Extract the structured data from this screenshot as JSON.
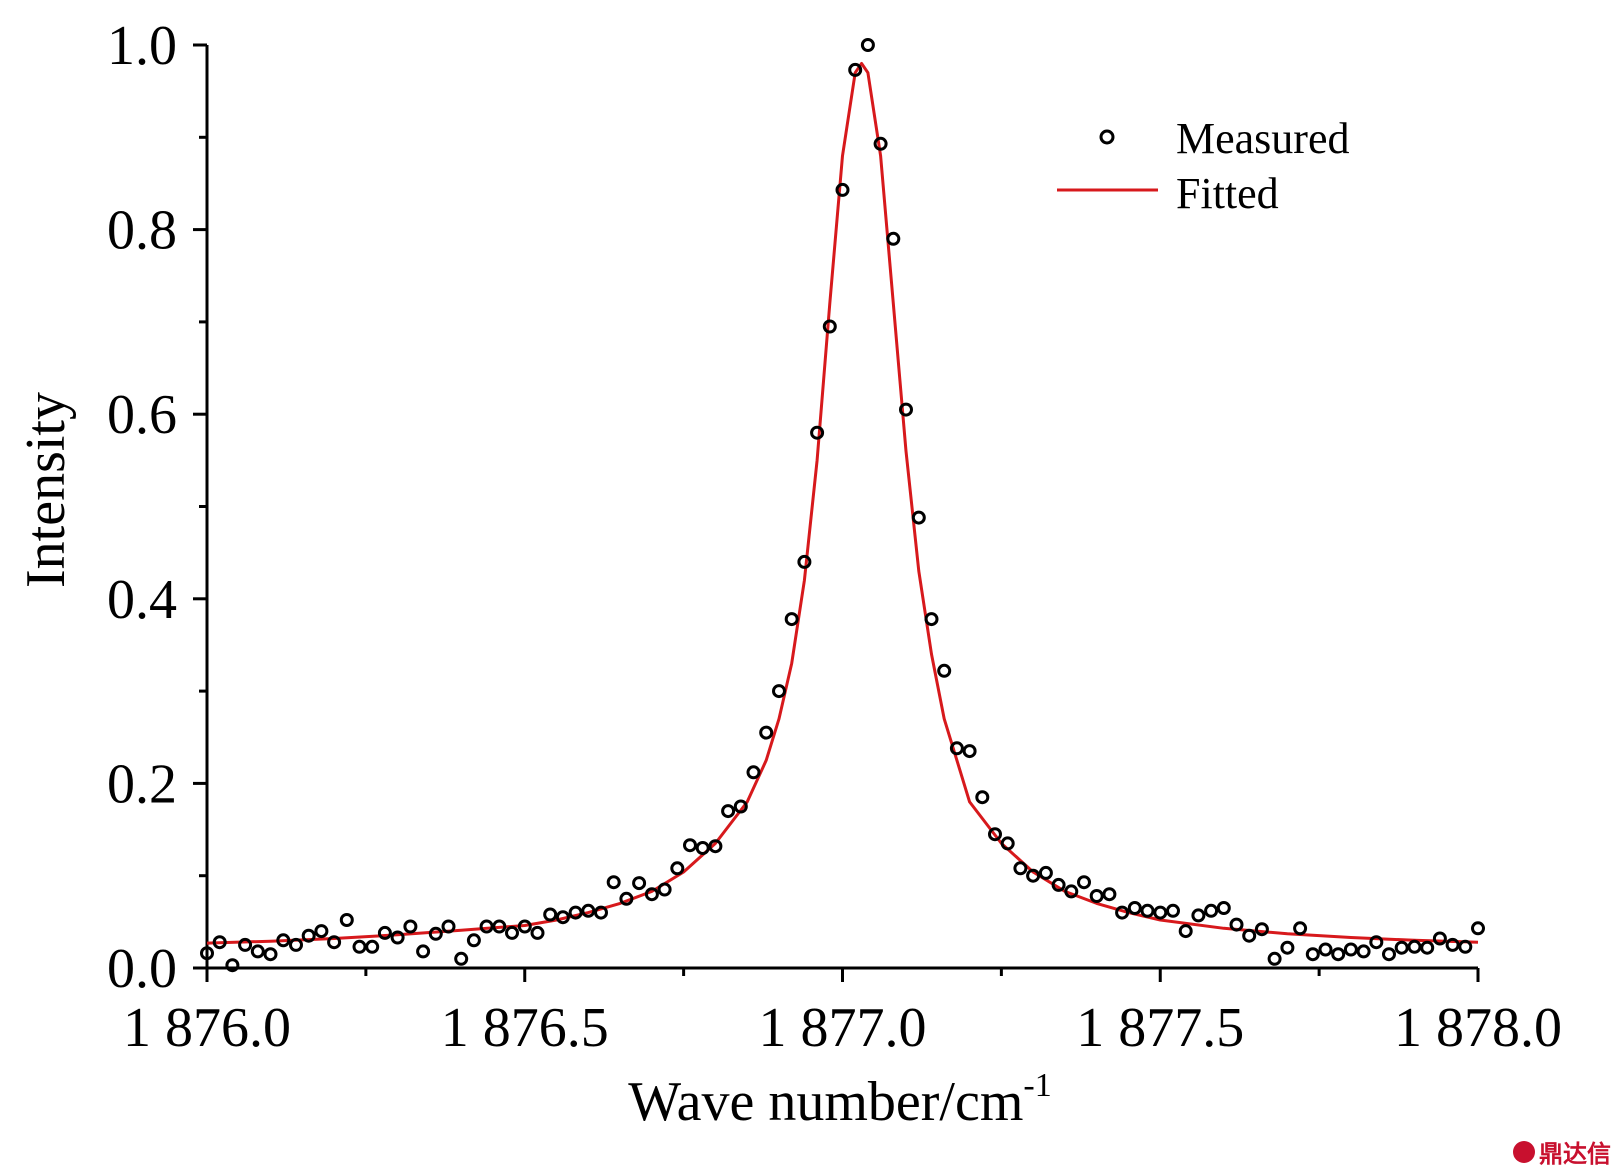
{
  "chart_data": {
    "type": "scatter",
    "xlabel": "Wave number/cm",
    "xlabel_superscript": "-1",
    "ylabel": "Intensity",
    "xlim": [
      1876.0,
      1878.0
    ],
    "ylim": [
      0.0,
      1.0
    ],
    "x_ticks": [
      1876.0,
      1876.5,
      1877.0,
      1877.5,
      1878.0
    ],
    "x_tick_labels": [
      "1 876.0",
      "1 876.5",
      "1 877.0",
      "1 877.5",
      "1 878.0"
    ],
    "y_ticks": [
      0.0,
      0.2,
      0.4,
      0.6,
      0.8,
      1.0
    ],
    "y_tick_labels": [
      "0.0",
      "0.2",
      "0.4",
      "0.6",
      "0.8",
      "1.0"
    ],
    "grid": false,
    "legend_position": "top-right",
    "series": [
      {
        "name": "Measured",
        "kind": "scatter",
        "marker": "open-circle",
        "color": "#000000",
        "points": [
          [
            1876.0,
            0.016
          ],
          [
            1876.02,
            0.028
          ],
          [
            1876.04,
            0.003
          ],
          [
            1876.06,
            0.025
          ],
          [
            1876.08,
            0.018
          ],
          [
            1876.1,
            0.015
          ],
          [
            1876.12,
            0.03
          ],
          [
            1876.14,
            0.025
          ],
          [
            1876.16,
            0.035
          ],
          [
            1876.18,
            0.04
          ],
          [
            1876.2,
            0.028
          ],
          [
            1876.22,
            0.052
          ],
          [
            1876.24,
            0.023
          ],
          [
            1876.26,
            0.023
          ],
          [
            1876.28,
            0.038
          ],
          [
            1876.3,
            0.033
          ],
          [
            1876.32,
            0.045
          ],
          [
            1876.34,
            0.018
          ],
          [
            1876.36,
            0.037
          ],
          [
            1876.38,
            0.045
          ],
          [
            1876.4,
            0.01
          ],
          [
            1876.42,
            0.03
          ],
          [
            1876.44,
            0.045
          ],
          [
            1876.46,
            0.045
          ],
          [
            1876.48,
            0.038
          ],
          [
            1876.5,
            0.045
          ],
          [
            1876.52,
            0.038
          ],
          [
            1876.54,
            0.058
          ],
          [
            1876.56,
            0.055
          ],
          [
            1876.58,
            0.06
          ],
          [
            1876.6,
            0.062
          ],
          [
            1876.62,
            0.06
          ],
          [
            1876.64,
            0.093
          ],
          [
            1876.66,
            0.075
          ],
          [
            1876.68,
            0.092
          ],
          [
            1876.7,
            0.08
          ],
          [
            1876.72,
            0.085
          ],
          [
            1876.74,
            0.108
          ],
          [
            1876.76,
            0.133
          ],
          [
            1876.78,
            0.13
          ],
          [
            1876.8,
            0.132
          ],
          [
            1876.82,
            0.17
          ],
          [
            1876.84,
            0.175
          ],
          [
            1876.86,
            0.212
          ],
          [
            1876.88,
            0.255
          ],
          [
            1876.9,
            0.3
          ],
          [
            1876.92,
            0.378
          ],
          [
            1876.94,
            0.44
          ],
          [
            1876.96,
            0.58
          ],
          [
            1876.98,
            0.695
          ],
          [
            1877.0,
            0.843
          ],
          [
            1877.02,
            0.973
          ],
          [
            1877.04,
            1.0
          ],
          [
            1877.06,
            0.893
          ],
          [
            1877.08,
            0.79
          ],
          [
            1877.1,
            0.605
          ],
          [
            1877.12,
            0.488
          ],
          [
            1877.14,
            0.378
          ],
          [
            1877.16,
            0.322
          ],
          [
            1877.18,
            0.238
          ],
          [
            1877.2,
            0.235
          ],
          [
            1877.22,
            0.185
          ],
          [
            1877.24,
            0.145
          ],
          [
            1877.26,
            0.135
          ],
          [
            1877.28,
            0.108
          ],
          [
            1877.3,
            0.1
          ],
          [
            1877.32,
            0.103
          ],
          [
            1877.34,
            0.09
          ],
          [
            1877.36,
            0.083
          ],
          [
            1877.38,
            0.093
          ],
          [
            1877.4,
            0.078
          ],
          [
            1877.42,
            0.08
          ],
          [
            1877.44,
            0.06
          ],
          [
            1877.46,
            0.065
          ],
          [
            1877.48,
            0.062
          ],
          [
            1877.5,
            0.06
          ],
          [
            1877.52,
            0.062
          ],
          [
            1877.54,
            0.04
          ],
          [
            1877.56,
            0.057
          ],
          [
            1877.58,
            0.062
          ],
          [
            1877.6,
            0.065
          ],
          [
            1877.62,
            0.047
          ],
          [
            1877.64,
            0.035
          ],
          [
            1877.66,
            0.042
          ],
          [
            1877.68,
            0.01
          ],
          [
            1877.7,
            0.022
          ],
          [
            1877.72,
            0.043
          ],
          [
            1877.74,
            0.015
          ],
          [
            1877.76,
            0.02
          ],
          [
            1877.78,
            0.015
          ],
          [
            1877.8,
            0.02
          ],
          [
            1877.82,
            0.018
          ],
          [
            1877.84,
            0.028
          ],
          [
            1877.86,
            0.015
          ],
          [
            1877.88,
            0.022
          ],
          [
            1877.9,
            0.023
          ],
          [
            1877.92,
            0.022
          ],
          [
            1877.94,
            0.032
          ],
          [
            1877.96,
            0.025
          ],
          [
            1877.98,
            0.023
          ],
          [
            1878.0,
            0.043
          ]
        ]
      },
      {
        "name": "Fitted",
        "kind": "line",
        "color": "#d7191c",
        "points": [
          [
            1876.0,
            0.027
          ],
          [
            1876.1,
            0.029
          ],
          [
            1876.2,
            0.032
          ],
          [
            1876.3,
            0.036
          ],
          [
            1876.4,
            0.041
          ],
          [
            1876.5,
            0.046
          ],
          [
            1876.55,
            0.052
          ],
          [
            1876.6,
            0.06
          ],
          [
            1876.65,
            0.07
          ],
          [
            1876.7,
            0.083
          ],
          [
            1876.75,
            0.104
          ],
          [
            1876.8,
            0.135
          ],
          [
            1876.85,
            0.18
          ],
          [
            1876.88,
            0.225
          ],
          [
            1876.9,
            0.27
          ],
          [
            1876.92,
            0.33
          ],
          [
            1876.94,
            0.42
          ],
          [
            1876.96,
            0.55
          ],
          [
            1876.98,
            0.72
          ],
          [
            1877.0,
            0.88
          ],
          [
            1877.02,
            0.97
          ],
          [
            1877.03,
            0.98
          ],
          [
            1877.04,
            0.97
          ],
          [
            1877.06,
            0.88
          ],
          [
            1877.08,
            0.72
          ],
          [
            1877.1,
            0.56
          ],
          [
            1877.12,
            0.43
          ],
          [
            1877.14,
            0.34
          ],
          [
            1877.16,
            0.27
          ],
          [
            1877.18,
            0.225
          ],
          [
            1877.2,
            0.18
          ],
          [
            1877.25,
            0.135
          ],
          [
            1877.3,
            0.104
          ],
          [
            1877.35,
            0.083
          ],
          [
            1877.4,
            0.07
          ],
          [
            1877.45,
            0.06
          ],
          [
            1877.5,
            0.052
          ],
          [
            1877.6,
            0.043
          ],
          [
            1877.7,
            0.037
          ],
          [
            1877.8,
            0.033
          ],
          [
            1877.9,
            0.03
          ],
          [
            1878.0,
            0.028
          ]
        ]
      }
    ]
  },
  "watermark": {
    "text": "鼎达信",
    "color": "#c8102e"
  }
}
